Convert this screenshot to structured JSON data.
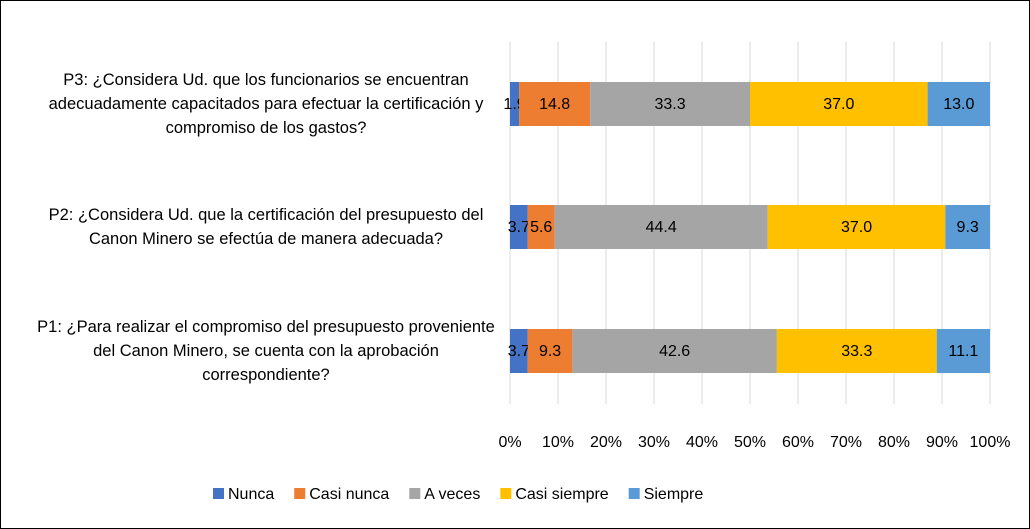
{
  "chart_data": {
    "type": "stacked_barh",
    "categories": [
      "P3: ¿Considera Ud. que los funcionarios se encuentran adecuadamente capacitados para efectuar la certificación y compromiso de los gastos?",
      "P2: ¿Considera Ud. que la certificación del presupuesto del Canon Minero se efectúa de manera adecuada?",
      "P1: ¿Para realizar el compromiso del presupuesto proveniente del Canon Minero, se cuenta con la aprobación correspondiente?"
    ],
    "series": [
      {
        "name": "Nunca",
        "color": "#4472c4",
        "values": [
          1.9,
          3.7,
          3.7
        ],
        "value_labels": [
          "1.9",
          "3.7",
          "3.7"
        ]
      },
      {
        "name": "Casi nunca",
        "color": "#ed7d31",
        "values": [
          14.8,
          5.6,
          9.3
        ],
        "value_labels": [
          "14.8",
          "5.6",
          "9.3"
        ]
      },
      {
        "name": "A veces",
        "color": "#a5a5a5",
        "values": [
          33.3,
          44.4,
          42.6
        ],
        "value_labels": [
          "33.3",
          "44.4",
          "42.6"
        ]
      },
      {
        "name": "Casi siempre",
        "color": "#ffc000",
        "values": [
          37.0,
          37.0,
          33.3
        ],
        "value_labels": [
          "37.0",
          "37.0",
          "33.3"
        ]
      },
      {
        "name": "Siempre",
        "color": "#5b9bd5",
        "values": [
          13.0,
          9.3,
          11.1
        ],
        "value_labels": [
          "13.0",
          "9.3",
          "11.1"
        ]
      }
    ],
    "xlim": [
      0,
      100
    ],
    "xticks": [
      {
        "value": 0,
        "label": "0%"
      },
      {
        "value": 10,
        "label": "10%"
      },
      {
        "value": 20,
        "label": "20%"
      },
      {
        "value": 30,
        "label": "30%"
      },
      {
        "value": 40,
        "label": "40%"
      },
      {
        "value": 50,
        "label": "50%"
      },
      {
        "value": 60,
        "label": "60%"
      },
      {
        "value": 70,
        "label": "70%"
      },
      {
        "value": 80,
        "label": "80%"
      },
      {
        "value": 90,
        "label": "90%"
      },
      {
        "value": 100,
        "label": "100%"
      }
    ],
    "grid": true,
    "legend": "bottom"
  }
}
